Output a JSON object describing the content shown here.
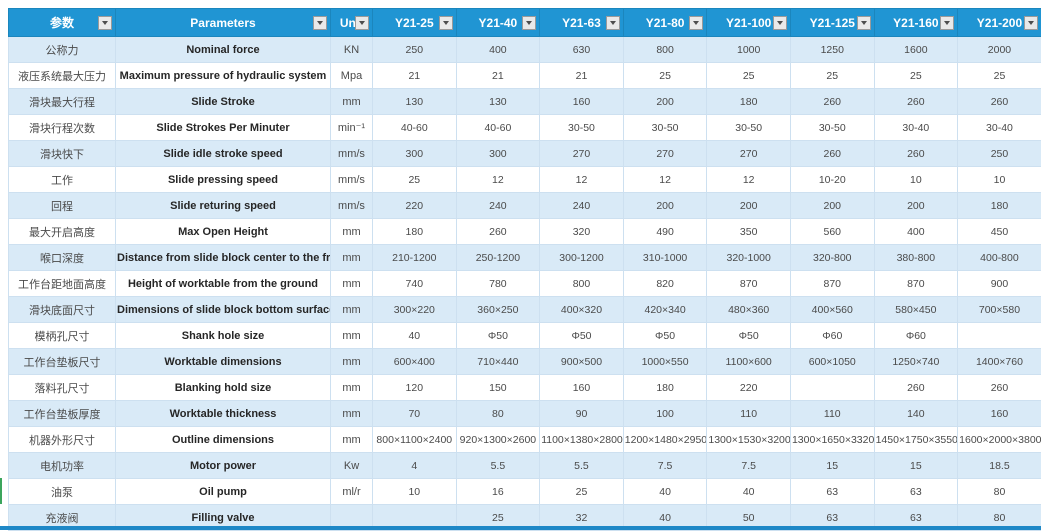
{
  "colors": {
    "header_bg": "#2095d3",
    "stripe_row_bg": "#d9eaf7",
    "grid_line": "#cde0f0",
    "bottom_strip": "#1e88c7",
    "selection_accent": "#3ba55c"
  },
  "icons": {
    "filter_dropdown": "triangle-down"
  },
  "table": {
    "columns": [
      "参数",
      "Parameters",
      "Unit",
      "Y21-25",
      "Y21-40",
      "Y21-63",
      "Y21-80",
      "Y21-100",
      "Y21-125",
      "Y21-160",
      "Y21-200"
    ],
    "rows": [
      {
        "zh": "公称力",
        "en": "Nominal force",
        "unit": "KN",
        "values": [
          "250",
          "400",
          "630",
          "800",
          "1000",
          "1250",
          "1600",
          "2000"
        ]
      },
      {
        "zh": "液压系统最大压力",
        "en": "Maximum pressure of hydraulic system",
        "unit": "Mpa",
        "values": [
          "21",
          "21",
          "21",
          "25",
          "25",
          "25",
          "25",
          "25"
        ]
      },
      {
        "zh": "滑块最大行程",
        "en": "Slide Stroke",
        "unit": "mm",
        "values": [
          "130",
          "130",
          "160",
          "200",
          "180",
          "260",
          "260",
          "260"
        ]
      },
      {
        "zh": "滑块行程次数",
        "en": "Slide Strokes Per Minuter",
        "unit": "min⁻¹",
        "values": [
          "40-60",
          "40-60",
          "30-50",
          "30-50",
          "30-50",
          "30-50",
          "30-40",
          "30-40"
        ]
      },
      {
        "zh": "滑块快下",
        "en": "Slide idle stroke speed",
        "unit": "mm/s",
        "values": [
          "300",
          "300",
          "270",
          "270",
          "270",
          "260",
          "260",
          "250"
        ]
      },
      {
        "zh": "工作",
        "en": "Slide pressing speed",
        "unit": "mm/s",
        "values": [
          "25",
          "12",
          "12",
          "12",
          "12",
          "10-20",
          "10",
          "10"
        ]
      },
      {
        "zh": "回程",
        "en": "Slide returing speed",
        "unit": "mm/s",
        "values": [
          "220",
          "240",
          "240",
          "200",
          "200",
          "200",
          "200",
          "180"
        ]
      },
      {
        "zh": "最大开启高度",
        "en": "Max Open Height",
        "unit": "mm",
        "values": [
          "180",
          "260",
          "320",
          "490",
          "350",
          "560",
          "400",
          "450"
        ]
      },
      {
        "zh": "喉口深度",
        "en": "Distance from slide block center to the frame",
        "unit": "mm",
        "values": [
          "210-1200",
          "250-1200",
          "300-1200",
          "310-1000",
          "320-1000",
          "320-800",
          "380-800",
          "400-800"
        ]
      },
      {
        "zh": "工作台距地面高度",
        "en": "Height of worktable from the ground",
        "unit": "mm",
        "values": [
          "740",
          "780",
          "800",
          "820",
          "870",
          "870",
          "870",
          "900"
        ]
      },
      {
        "zh": "滑块底面尺寸",
        "en": "Dimensions of slide block bottom surface",
        "unit": "mm",
        "values": [
          "300×220",
          "360×250",
          "400×320",
          "420×340",
          "480×360",
          "400×560",
          "580×450",
          "700×580"
        ]
      },
      {
        "zh": "模柄孔尺寸",
        "en": "Shank hole size",
        "unit": "mm",
        "values": [
          "40",
          "Φ50",
          "Φ50",
          "Φ50",
          "Φ50",
          "Φ60",
          "Φ60",
          ""
        ]
      },
      {
        "zh": "工作台垫板尺寸",
        "en": "Worktable dimensions",
        "unit": "mm",
        "values": [
          "600×400",
          "710×440",
          "900×500",
          "1000×550",
          "1100×600",
          "600×1050",
          "1250×740",
          "1400×760"
        ]
      },
      {
        "zh": "落料孔尺寸",
        "en": "Blanking hold size",
        "unit": "mm",
        "values": [
          "120",
          "150",
          "160",
          "180",
          "220",
          "",
          "260",
          "260"
        ]
      },
      {
        "zh": "工作台垫板厚度",
        "en": "Worktable thickness",
        "unit": "mm",
        "values": [
          "70",
          "80",
          "90",
          "100",
          "110",
          "110",
          "140",
          "160"
        ]
      },
      {
        "zh": "机器外形尺寸",
        "en": "Outline dimensions",
        "unit": "mm",
        "values": [
          "800×1100×2400",
          "920×1300×2600",
          "1100×1380×2800",
          "1200×1480×2950",
          "1300×1530×3200",
          "1300×1650×3320",
          "1450×1750×3550",
          "1600×2000×3800"
        ]
      },
      {
        "zh": "电机功率",
        "en": "Motor power",
        "unit": "Kw",
        "values": [
          "4",
          "5.5",
          "5.5",
          "7.5",
          "7.5",
          "15",
          "15",
          "18.5"
        ]
      },
      {
        "zh": "油泵",
        "en": "Oil pump",
        "unit": "ml/r",
        "values": [
          "10",
          "16",
          "25",
          "40",
          "40",
          "63",
          "63",
          "80"
        ]
      },
      {
        "zh": "充液阀",
        "en": "Filling valve",
        "unit": "",
        "values": [
          "",
          "25",
          "32",
          "40",
          "50",
          "63",
          "63",
          "80"
        ]
      }
    ]
  }
}
